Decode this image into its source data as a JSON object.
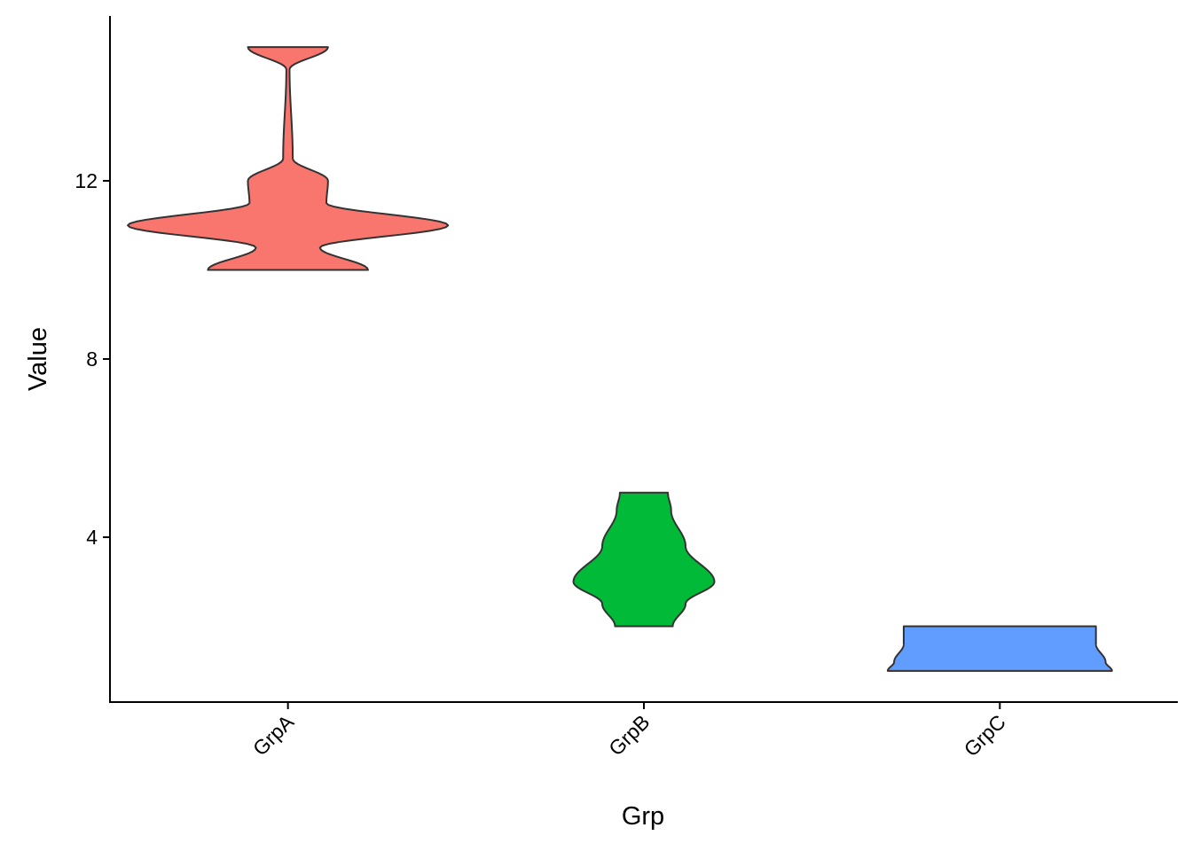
{
  "chart_data": {
    "type": "violin",
    "xlabel": "Grp",
    "ylabel": "Value",
    "categories": [
      "GrpA",
      "GrpB",
      "GrpC"
    ],
    "y_ticks": [
      4,
      8,
      12
    ],
    "ylim": [
      0.3,
      15.7
    ],
    "grid": false,
    "legend": "none",
    "series": [
      {
        "category": "GrpA",
        "color": "#F8766D",
        "min": 10,
        "max": 15,
        "density": [
          [
            10,
            0.5
          ],
          [
            10.5,
            0.2
          ],
          [
            11,
            1.0
          ],
          [
            11.5,
            0.24
          ],
          [
            12,
            0.25
          ],
          [
            12.5,
            0.03
          ],
          [
            14.5,
            0.01
          ],
          [
            15,
            0.25
          ]
        ]
      },
      {
        "category": "GrpB",
        "color": "#00BA38",
        "min": 2,
        "max": 5,
        "density": [
          [
            2,
            0.18
          ],
          [
            2.5,
            0.26
          ],
          [
            3,
            0.44
          ],
          [
            3.8,
            0.26
          ],
          [
            4.6,
            0.17
          ],
          [
            5,
            0.15
          ]
        ]
      },
      {
        "category": "GrpC",
        "color": "#619CFF",
        "min": 1,
        "max": 2,
        "density": [
          [
            1,
            0.7
          ],
          [
            1.2,
            0.66
          ],
          [
            1.6,
            0.6
          ],
          [
            2,
            0.6
          ]
        ]
      }
    ]
  }
}
